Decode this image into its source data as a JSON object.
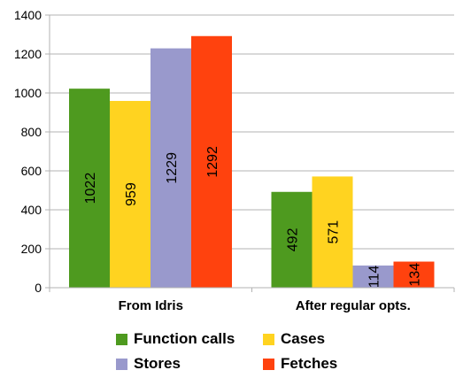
{
  "chart_data": {
    "type": "bar",
    "title": "",
    "xlabel": "",
    "ylabel": "",
    "ylim": [
      0,
      1400
    ],
    "yticks": [
      0,
      200,
      400,
      600,
      800,
      1000,
      1200,
      1400
    ],
    "grid": true,
    "legend_position": "bottom",
    "categories": [
      "From Idris",
      "After regular opts."
    ],
    "series": [
      {
        "name": "Function calls",
        "color": "#4e9a1f",
        "values": [
          1022,
          492
        ]
      },
      {
        "name": "Cases",
        "color": "#ffd320",
        "values": [
          959,
          571
        ]
      },
      {
        "name": "Stores",
        "color": "#9999cc",
        "values": [
          1229,
          114
        ]
      },
      {
        "name": "Fetches",
        "color": "#ff420e",
        "values": [
          1292,
          134
        ]
      }
    ]
  }
}
